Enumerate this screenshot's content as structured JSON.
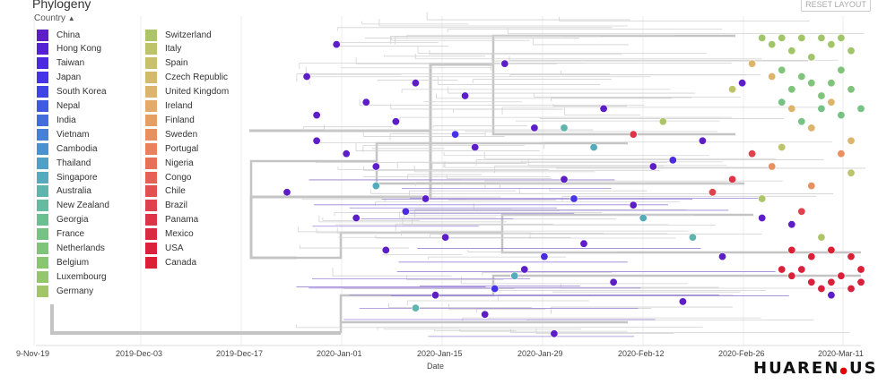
{
  "header": {
    "title": "Phylogeny",
    "reset_label": "RESET LAYOUT",
    "country_label": "Country",
    "country_chevron": "▲"
  },
  "legend": {
    "items": [
      {
        "label": "China",
        "color": "#5e1ec7"
      },
      {
        "label": "Hong Kong",
        "color": "#5522d6"
      },
      {
        "label": "Taiwan",
        "color": "#4b2ae0"
      },
      {
        "label": "Japan",
        "color": "#4535e6"
      },
      {
        "label": "South Korea",
        "color": "#4044e6"
      },
      {
        "label": "Nepal",
        "color": "#4158e3"
      },
      {
        "label": "India",
        "color": "#436cdd"
      },
      {
        "label": "Vietnam",
        "color": "#4780d7"
      },
      {
        "label": "Cambodia",
        "color": "#4a91cf"
      },
      {
        "label": "Thailand",
        "color": "#4f9fc6"
      },
      {
        "label": "Singapore",
        "color": "#55abbb"
      },
      {
        "label": "Australia",
        "color": "#5db5ad"
      },
      {
        "label": "New Zealand",
        "color": "#64bb9f"
      },
      {
        "label": "Georgia",
        "color": "#6cbf91"
      },
      {
        "label": "France",
        "color": "#75c284"
      },
      {
        "label": "Netherlands",
        "color": "#7fc47a"
      },
      {
        "label": "Belgium",
        "color": "#8ac572"
      },
      {
        "label": "Luxembourg",
        "color": "#95c56d"
      },
      {
        "label": "Germany",
        "color": "#a2c56a"
      },
      {
        "label": "Switzerland",
        "color": "#aec469"
      },
      {
        "label": "Italy",
        "color": "#bcc369"
      },
      {
        "label": "Spain",
        "color": "#c8c06a"
      },
      {
        "label": "Czech Republic",
        "color": "#d3bb6b"
      },
      {
        "label": "United Kingdom",
        "color": "#dcb46b"
      },
      {
        "label": "Ireland",
        "color": "#e3aa69"
      },
      {
        "label": "Finland",
        "color": "#e69e63"
      },
      {
        "label": "Sweden",
        "color": "#e89060"
      },
      {
        "label": "Portugal",
        "color": "#e8815c"
      },
      {
        "label": "Nigeria",
        "color": "#e77158"
      },
      {
        "label": "Congo",
        "color": "#e56154"
      },
      {
        "label": "Chile",
        "color": "#e25150"
      },
      {
        "label": "Brazil",
        "color": "#df424c"
      },
      {
        "label": "Panama",
        "color": "#dc3547"
      },
      {
        "label": "Mexico",
        "color": "#d92a42"
      },
      {
        "label": "USA",
        "color": "#d9213c"
      },
      {
        "label": "Canada",
        "color": "#db1f35"
      }
    ]
  },
  "chart_data": {
    "type": "scatter",
    "title": "Phylogeny",
    "xlabel": "Date",
    "ylabel": "",
    "x_ticks": [
      "9-Nov-19",
      "2019-Dec-03",
      "2019-Dec-17",
      "2020-Jan-01",
      "2020-Jan-15",
      "2020-Jan-29",
      "2020-Feb-12",
      "2020-Feb-26",
      "2020-Mar-11"
    ],
    "legend_title": "Country",
    "color_by": "Country",
    "series": [
      {
        "name": "China",
        "color": "#5e1ec7",
        "points": [
          [
            0,
            26
          ],
          [
            2,
            8
          ],
          [
            3,
            14
          ],
          [
            3,
            18
          ],
          [
            5,
            3
          ],
          [
            6,
            20
          ],
          [
            7,
            30
          ],
          [
            8,
            12
          ],
          [
            9,
            22
          ],
          [
            10,
            35
          ],
          [
            11,
            15
          ],
          [
            13,
            9
          ],
          [
            14,
            27
          ],
          [
            15,
            42
          ],
          [
            16,
            33
          ],
          [
            18,
            11
          ],
          [
            19,
            19
          ],
          [
            20,
            45
          ],
          [
            22,
            6
          ],
          [
            24,
            38
          ],
          [
            25,
            16
          ],
          [
            27,
            48
          ],
          [
            28,
            24
          ],
          [
            30,
            34
          ],
          [
            32,
            13
          ],
          [
            33,
            40
          ],
          [
            35,
            28
          ],
          [
            37,
            22
          ],
          [
            40,
            43
          ],
          [
            42,
            18
          ],
          [
            44,
            36
          ],
          [
            46,
            9
          ],
          [
            48,
            30
          ],
          [
            51,
            31
          ],
          [
            55,
            42
          ]
        ]
      },
      {
        "name": "Taiwan",
        "color": "#4b2ae0",
        "points": [
          [
            12,
            29
          ],
          [
            26,
            36
          ],
          [
            39,
            21
          ]
        ]
      },
      {
        "name": "Japan",
        "color": "#4535e6",
        "points": [
          [
            17,
            17
          ],
          [
            21,
            41
          ],
          [
            29,
            27
          ]
        ]
      },
      {
        "name": "Singapore",
        "color": "#55abbb",
        "points": [
          [
            9,
            25
          ],
          [
            23,
            39
          ],
          [
            31,
            19
          ],
          [
            36,
            30
          ]
        ]
      },
      {
        "name": "Australia",
        "color": "#5db5ad",
        "points": [
          [
            13,
            44
          ],
          [
            28,
            16
          ],
          [
            41,
            33
          ]
        ]
      },
      {
        "name": "Germany",
        "color": "#a2c56a",
        "points": [
          [
            48,
            2
          ],
          [
            49,
            3
          ],
          [
            50,
            2
          ],
          [
            51,
            4
          ],
          [
            52,
            2
          ],
          [
            53,
            5
          ],
          [
            54,
            2
          ],
          [
            55,
            3
          ],
          [
            56,
            2
          ],
          [
            57,
            4
          ]
        ]
      },
      {
        "name": "Netherlands",
        "color": "#7fc47a",
        "points": [
          [
            50,
            7
          ],
          [
            51,
            10
          ],
          [
            52,
            8
          ],
          [
            53,
            9
          ],
          [
            54,
            11
          ],
          [
            55,
            9
          ],
          [
            56,
            7
          ],
          [
            57,
            10
          ]
        ]
      },
      {
        "name": "France",
        "color": "#75c284",
        "points": [
          [
            50,
            12
          ],
          [
            52,
            15
          ],
          [
            54,
            13
          ],
          [
            56,
            14
          ],
          [
            58,
            13
          ]
        ]
      },
      {
        "name": "United Kingdom",
        "color": "#dcb46b",
        "points": [
          [
            47,
            6
          ],
          [
            49,
            8
          ],
          [
            51,
            13
          ],
          [
            53,
            16
          ],
          [
            55,
            12
          ],
          [
            57,
            18
          ]
        ]
      },
      {
        "name": "Sweden",
        "color": "#e89060",
        "points": [
          [
            49,
            22
          ],
          [
            53,
            25
          ],
          [
            56,
            20
          ]
        ]
      },
      {
        "name": "USA",
        "color": "#d9213c",
        "points": [
          [
            50,
            38
          ],
          [
            51,
            39
          ],
          [
            52,
            38
          ],
          [
            53,
            40
          ],
          [
            54,
            41
          ],
          [
            55,
            40
          ],
          [
            56,
            39
          ],
          [
            57,
            41
          ],
          [
            58,
            40
          ]
        ]
      },
      {
        "name": "Canada",
        "color": "#db1f35",
        "points": [
          [
            51,
            35
          ],
          [
            53,
            36
          ],
          [
            55,
            35
          ],
          [
            57,
            36
          ],
          [
            58,
            38
          ]
        ]
      },
      {
        "name": "Brazil",
        "color": "#df424c",
        "points": [
          [
            43,
            26
          ],
          [
            47,
            20
          ],
          [
            52,
            29
          ]
        ]
      },
      {
        "name": "Panama",
        "color": "#dc3547",
        "points": [
          [
            35,
            17
          ],
          [
            45,
            24
          ]
        ]
      },
      {
        "name": "Switzerland",
        "color": "#aec469",
        "points": [
          [
            38,
            15
          ],
          [
            48,
            27
          ],
          [
            54,
            33
          ]
        ]
      },
      {
        "name": "Italy",
        "color": "#bcc369",
        "points": [
          [
            45,
            10
          ],
          [
            50,
            19
          ],
          [
            57,
            23
          ]
        ]
      }
    ]
  },
  "watermark": {
    "text": "HUAREN",
    "dot": "●",
    "suffix": "US"
  }
}
